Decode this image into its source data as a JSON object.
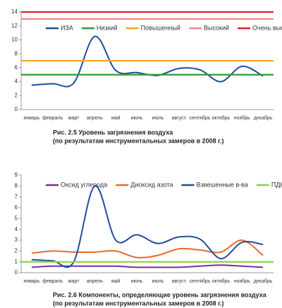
{
  "chart_data": [
    {
      "type": "line",
      "title": "Рис. 2.5 Уровень загрязнения воздуха",
      "subtitle": "(по результатам инструментальных замеров в 2008 г.)",
      "categories": [
        "январь",
        "февраль",
        "март",
        "апрель",
        "май",
        "июнь",
        "июль",
        "август",
        "сентябрь",
        "октябрь",
        "ноябрь",
        "декабрь"
      ],
      "series": [
        {
          "name": "ИЗА",
          "color": "#1f4e9c",
          "smooth": true,
          "values": [
            3.5,
            3.7,
            3.8,
            10.5,
            5.6,
            5.3,
            4.9,
            5.9,
            5.7,
            4.0,
            6.2,
            4.8
          ]
        },
        {
          "name": "Низкий",
          "color": "#2e9b3a",
          "values": [
            5,
            5,
            5,
            5,
            5,
            5,
            5,
            5,
            5,
            5,
            5,
            5
          ]
        },
        {
          "name": "Повышенный",
          "color": "#f5a623",
          "values": [
            7,
            7,
            7,
            7,
            7,
            7,
            7,
            7,
            7,
            7,
            7,
            7
          ]
        },
        {
          "name": "Высокий",
          "color": "#f08a8a",
          "values": [
            13,
            13,
            13,
            13,
            13,
            13,
            13,
            13,
            13,
            13,
            13,
            13
          ]
        },
        {
          "name": "Очень высокий",
          "color": "#d9252a",
          "values": [
            14,
            14,
            14,
            14,
            14,
            14,
            14,
            14,
            14,
            14,
            14,
            14
          ]
        }
      ],
      "ylim": [
        0,
        14
      ],
      "yticks": [
        0,
        2,
        4,
        6,
        8,
        10,
        12,
        14
      ],
      "grid": false
    },
    {
      "type": "line",
      "title": "Рис. 2.6 Компоненты, определяющие уровень загрязнения воздуха",
      "subtitle": "(по результатам инструментальных замеров в 2008 г.)",
      "categories": [
        "январь",
        "февраль",
        "март",
        "апрель",
        "май",
        "июнь",
        "июль",
        "август",
        "сентябрь",
        "октябрь",
        "ноябрь",
        "декабрь"
      ],
      "series": [
        {
          "name": "Оксид углерода",
          "color": "#7b2d9b",
          "smooth": true,
          "values": [
            0.5,
            0.6,
            0.6,
            0.6,
            0.6,
            0.5,
            0.5,
            0.5,
            0.6,
            0.7,
            0.6,
            0.5
          ]
        },
        {
          "name": "Диоксид азота",
          "color": "#e8692c",
          "smooth": true,
          "values": [
            1.8,
            2.0,
            1.9,
            1.9,
            2.0,
            1.4,
            1.6,
            2.2,
            2.1,
            1.9,
            3.0,
            1.6
          ]
        },
        {
          "name": "Взвешенные в-ва",
          "color": "#1f4e9c",
          "smooth": true,
          "values": [
            1.2,
            1.1,
            1.0,
            8.0,
            3.0,
            3.5,
            2.7,
            3.3,
            3.1,
            1.3,
            2.8,
            2.6
          ]
        },
        {
          "name": "ПДК",
          "color": "#8ccf3f",
          "values": [
            1,
            1,
            1,
            1,
            1,
            1,
            1,
            1,
            1,
            1,
            1,
            1
          ]
        }
      ],
      "ylim": [
        0,
        9
      ],
      "yticks": [
        0,
        1,
        2,
        3,
        4,
        5,
        6,
        7,
        8,
        9
      ],
      "grid": false
    }
  ]
}
